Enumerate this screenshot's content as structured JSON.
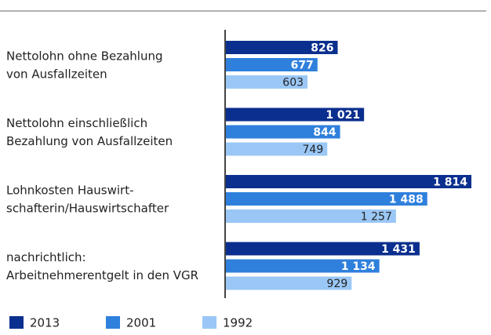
{
  "chart_data": {
    "type": "bar",
    "orientation": "horizontal",
    "categories": [
      [
        "Nettolohn ohne Bezahlung",
        "von Ausfallzeiten"
      ],
      [
        "Nettolohn einschließlich",
        "Bezahlung von Ausfallzeiten"
      ],
      [
        "Lohnkosten Hauswirt-",
        "schafterin/Hauswirtschafter"
      ],
      [
        "nachrichtlich:",
        "Arbeitnehmerentgelt in den VGR"
      ]
    ],
    "series": [
      {
        "name": "2013",
        "color": "#0b2f8e",
        "values": [
          826,
          1021,
          1814,
          1431
        ],
        "value_labels": [
          "826",
          "1 021",
          "1 814",
          "1 431"
        ]
      },
      {
        "name": "2001",
        "color": "#2f80dc",
        "values": [
          677,
          844,
          1488,
          1134
        ],
        "value_labels": [
          "677",
          "844",
          "1 488",
          "1 134"
        ]
      },
      {
        "name": "1992",
        "color": "#9ac7f6",
        "values": [
          603,
          749,
          1257,
          929
        ],
        "value_labels": [
          "603",
          "749",
          "1 257",
          "929"
        ]
      }
    ]
  }
}
